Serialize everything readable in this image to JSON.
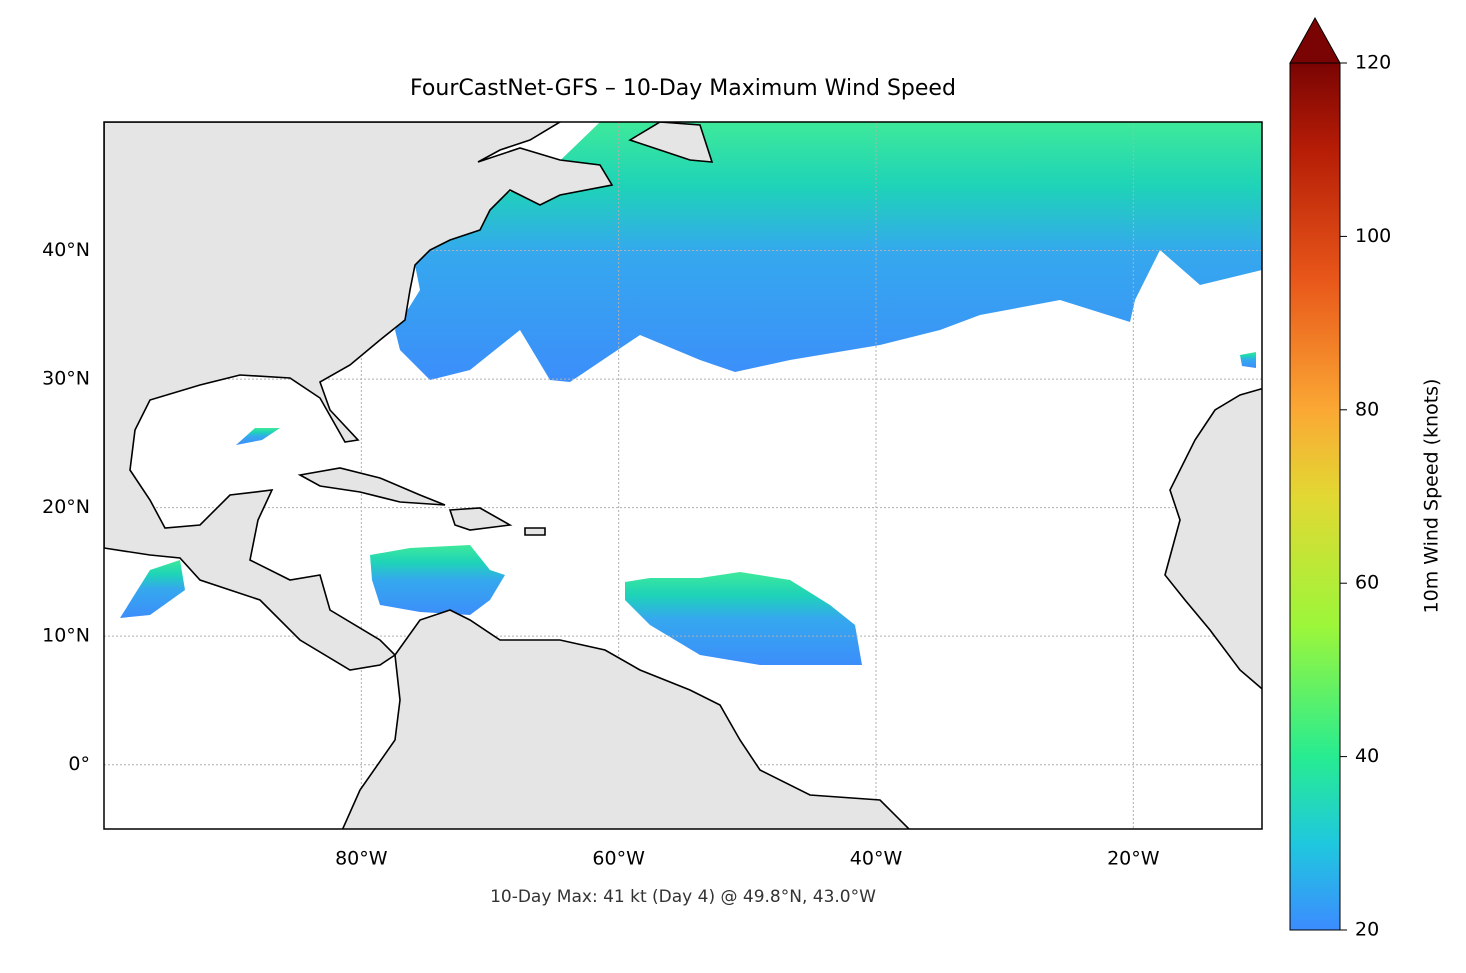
{
  "chart_data": {
    "type": "map",
    "title": "FourCastNet-GFS – 10-Day Maximum Wind Speed",
    "annotation": "10-Day Max: 41 kt (Day 4) @ 49.8°N, 43.0°W",
    "xlim": [
      -100,
      -10
    ],
    "ylim": [
      -5,
      50
    ],
    "xticks": [
      {
        "value": -80,
        "label": "80°W"
      },
      {
        "value": -60,
        "label": "60°W"
      },
      {
        "value": -40,
        "label": "40°W"
      },
      {
        "value": -20,
        "label": "20°W"
      }
    ],
    "yticks": [
      {
        "value": 0,
        "label": "0°"
      },
      {
        "value": 10,
        "label": "10°N"
      },
      {
        "value": 20,
        "label": "20°N"
      },
      {
        "value": 30,
        "label": "30°N"
      },
      {
        "value": 40,
        "label": "40°N"
      }
    ],
    "grid": true,
    "colorbar": {
      "label": "10m Wind Speed (knots)",
      "lim": [
        20,
        120
      ],
      "ticks": [
        20,
        40,
        60,
        80,
        100,
        120
      ]
    }
  }
}
